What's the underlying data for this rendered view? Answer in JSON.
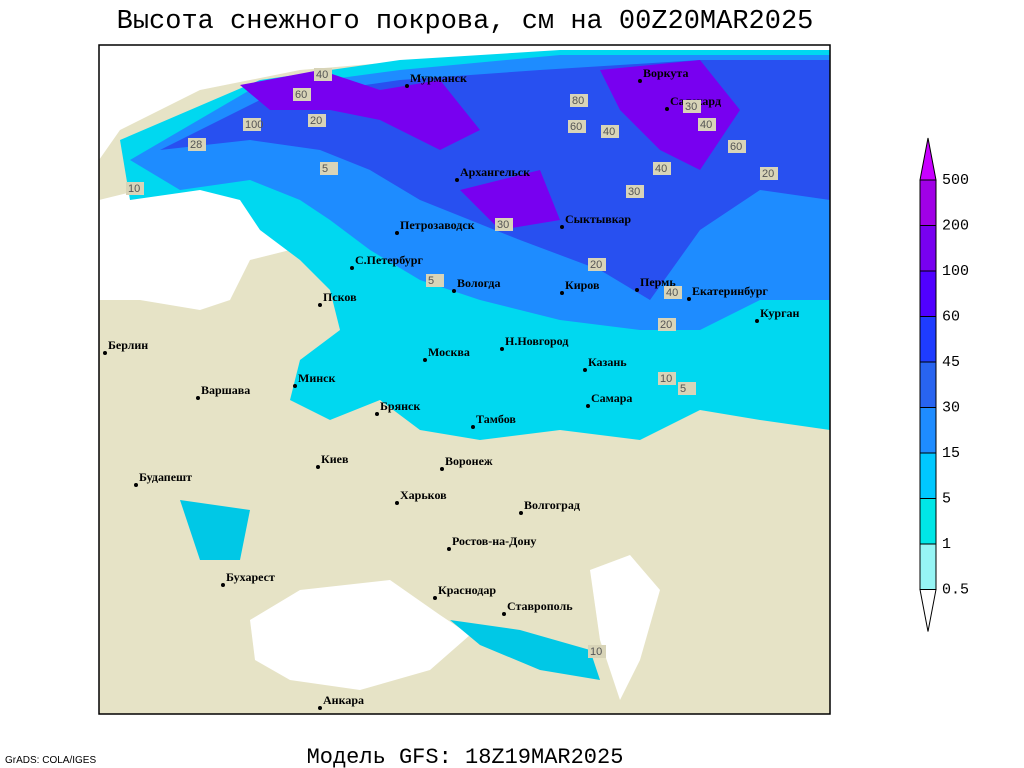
{
  "header": {
    "title": "Высота снежного покрова, см на 00Z20MAR2025"
  },
  "footer": {
    "credit": "GrADS: COLA/IGES",
    "model": "Модель GFS: 18Z19MAR2025"
  },
  "cities": [
    "Мурманск",
    "Воркута",
    "Салехард",
    "Архангельск",
    "Петрозаводск",
    "Сыктывкар",
    "С.Петербург",
    "Вологда",
    "Киров",
    "Пермь",
    "Екатеринбург",
    "Курган",
    "Псков",
    "Берлин",
    "Н.Новгород",
    "Москва",
    "Казань",
    "Минск",
    "Варшава",
    "Самара",
    "Брянск",
    "Тамбов",
    "Киев",
    "Воронеж",
    "Будапешт",
    "Харьков",
    "Волгоград",
    "Ростов-на-Дону",
    "Бухарест",
    "Краснодар",
    "Ставрополь",
    "Анкара"
  ],
  "contour_labels": [
    40,
    60,
    20,
    100,
    28,
    10,
    5,
    80,
    60,
    40,
    30,
    40,
    60,
    20,
    30,
    40,
    20,
    5,
    10,
    5,
    20,
    40,
    30,
    10
  ],
  "legend": {
    "labels": [
      500,
      200,
      100,
      60,
      45,
      30,
      15,
      5,
      1,
      0.5
    ],
    "colors": [
      "#c800ff",
      "#a000e6",
      "#7800f0",
      "#5000ff",
      "#1e3cff",
      "#2864f0",
      "#1e8cff",
      "#00c8ff",
      "#00e6e6",
      "#96f5f5",
      "#ffffff"
    ]
  }
}
